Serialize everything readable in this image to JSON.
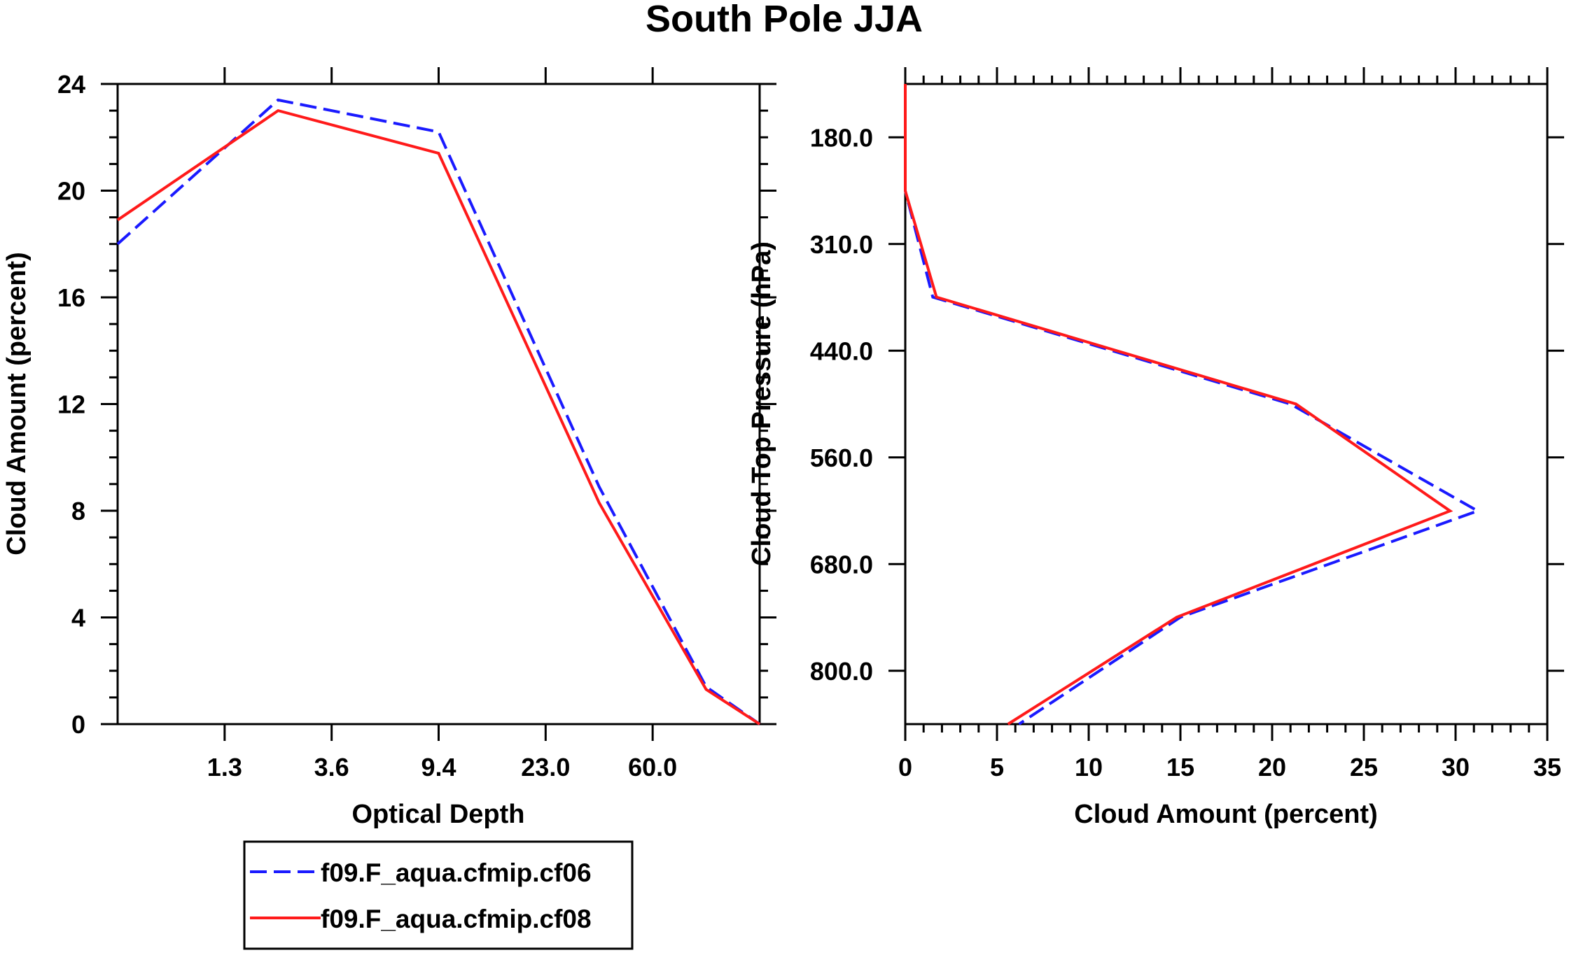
{
  "title": "South Pole JJA",
  "colors": {
    "series_a": "#1a1aff",
    "series_b": "#ff1a1a",
    "axis": "#000000"
  },
  "legend": {
    "entries": [
      {
        "label": "f09.F_aqua.cfmip.cf06",
        "color": "#1a1aff",
        "style": "dashed"
      },
      {
        "label": "f09.F_aqua.cfmip.cf08",
        "color": "#ff1a1a",
        "style": "solid"
      }
    ]
  },
  "chart_data": [
    {
      "type": "line",
      "title": "South Pole JJA",
      "xlabel": "Optical Depth",
      "ylabel": "Cloud Amount (percent)",
      "x_tick_labels": [
        "1.3",
        "3.6",
        "9.4",
        "23.0",
        "60.0"
      ],
      "y_ticks": [
        0,
        4,
        8,
        12,
        16,
        20,
        24
      ],
      "ylim": [
        0,
        24
      ],
      "x_bins": [
        0,
        1,
        2,
        3,
        4,
        5,
        6
      ],
      "series": [
        {
          "name": "f09.F_aqua.cfmip.cf06",
          "style": "dashed",
          "values": [
            18.0,
            23.4,
            22.2,
            8.9,
            1.4,
            0.0
          ]
        },
        {
          "name": "f09.F_aqua.cfmip.cf08",
          "style": "solid",
          "values": [
            18.9,
            23.0,
            21.4,
            8.3,
            1.3,
            0.0
          ]
        }
      ]
    },
    {
      "type": "line",
      "xlabel": "Cloud Amount (percent)",
      "ylabel": "Cloud Top Pressure (hPa)",
      "x_ticks": [
        0,
        5,
        10,
        15,
        20,
        25,
        30,
        35
      ],
      "xlim": [
        0,
        35
      ],
      "y_tick_labels": [
        "180.0",
        "310.0",
        "440.0",
        "560.0",
        "680.0",
        "800.0"
      ],
      "y_levels": [
        "180.0",
        "310.0",
        "440.0",
        "560.0",
        "680.0",
        "800.0"
      ],
      "series": [
        {
          "name": "f09.F_aqua.cfmip.cf06",
          "style": "dashed",
          "x": [
            0.0,
            0.0,
            1.5,
            21.0,
            31.2,
            15.0,
            6.2
          ]
        },
        {
          "name": "f09.F_aqua.cfmip.cf08",
          "style": "solid",
          "x": [
            0.0,
            0.0,
            1.7,
            21.3,
            29.7,
            14.8,
            5.6
          ]
        }
      ]
    }
  ]
}
